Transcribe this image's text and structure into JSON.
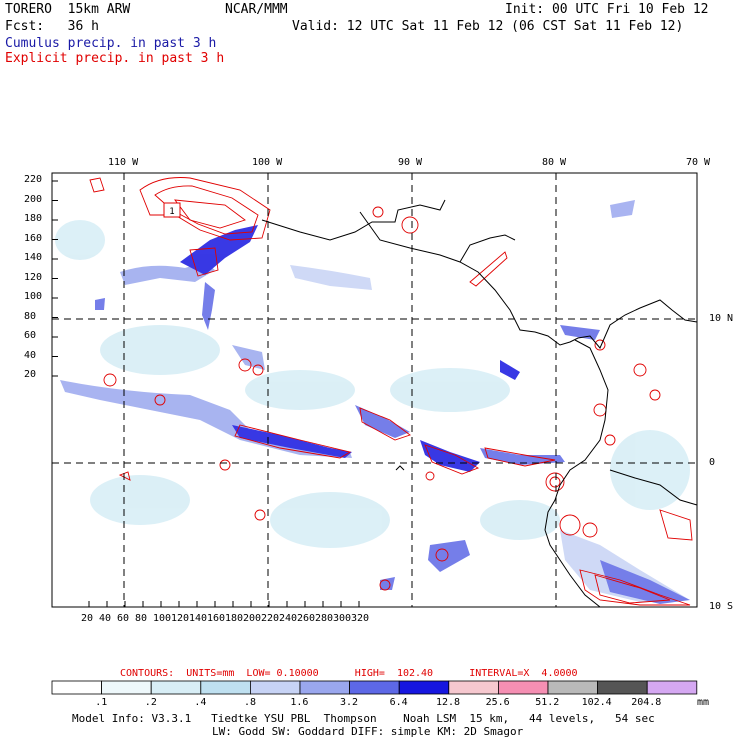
{
  "header": {
    "model": "TORERO  15km ARW",
    "org": "NCAR/MMM",
    "init": "Init: 00 UTC Fri 10 Feb 12",
    "fcst": "Fcst:   36 h",
    "valid": "Valid: 12 UTC Sat 11 Feb 12 (06 CST Sat 11 Feb 12)",
    "cumulus_label": "Cumulus precip. in past 3 h",
    "explicit_label": "Explicit precip. in past 3 h"
  },
  "colors": {
    "cumulus": "#1a1aa6",
    "explicit": "#e00000",
    "coast": "#000000"
  },
  "axes": {
    "lon_labels": [
      "110 W",
      "100 W",
      "90 W",
      "80 W",
      "70 W"
    ],
    "lat_labels": [
      "10 N",
      "0",
      "10 S"
    ],
    "y_ticks": [
      "220",
      "200",
      "180",
      "160",
      "140",
      "120",
      "100",
      "80",
      "60",
      "40",
      "20"
    ],
    "x_ticks": [
      "20",
      "40",
      "60",
      "80",
      "100",
      "120",
      "140",
      "160",
      "180",
      "200",
      "220",
      "240",
      "260",
      "280",
      "300",
      "320"
    ]
  },
  "contours_line": "CONTOURS:  UNITS=mm  LOW= 0.10000      HIGH=  102.40      INTERVAL=X  4.0000",
  "colorbar": {
    "labels": [
      ".1",
      ".2",
      ".4",
      ".8",
      "1.6",
      "3.2",
      "6.4",
      "12.8",
      "25.6",
      "51.2",
      "102.4",
      "204.8"
    ],
    "unit": "mm",
    "colors": [
      "#ffffff",
      "#eef8fb",
      "#d8eef6",
      "#bfe0f0",
      "#c7d3f5",
      "#9aa7ee",
      "#5d68e6",
      "#1616e0",
      "#f6c8cf",
      "#f58fb3",
      "#b9b9b9",
      "#555555",
      "#d5a8f2"
    ]
  },
  "footer": {
    "line1": "Model Info: V3.3.1   Tiedtke YSU PBL  Thompson    Noah LSM  15 km,   44 levels,   54 sec",
    "line2": "LW: Godd SW: Goddard DIFF: simple KM: 2D Smagor"
  },
  "map_label_box": "1"
}
